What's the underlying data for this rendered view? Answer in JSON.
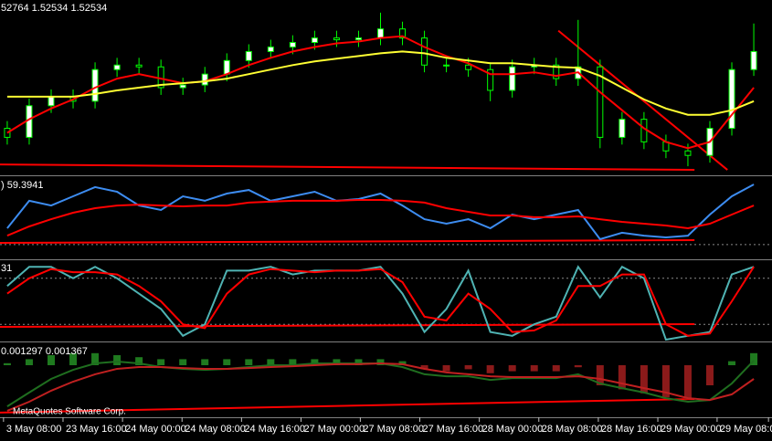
{
  "chart_data": [
    {
      "type": "candlestick",
      "title": "52764 1.52534 1.52534",
      "ylim": [
        1.52,
        1.5295
      ],
      "open": [
        1.5225,
        1.522,
        1.52375,
        1.52425,
        1.524,
        1.52575,
        1.526,
        1.5259,
        1.52475,
        1.5249,
        1.5255,
        1.52625,
        1.52675,
        1.527,
        1.52725,
        1.5275,
        1.5274,
        1.5275,
        1.528,
        1.5275,
        1.526,
        1.526,
        1.52575,
        1.5246,
        1.5259,
        1.526,
        1.52525,
        1.5259,
        1.522,
        1.523,
        1.52175,
        1.52125,
        1.521,
        1.5225,
        1.52575
      ],
      "high": [
        1.5229,
        1.52415,
        1.52465,
        1.52465,
        1.52615,
        1.5264,
        1.5264,
        1.5263,
        1.5253,
        1.5259,
        1.52665,
        1.52715,
        1.5274,
        1.52765,
        1.5279,
        1.5279,
        1.5279,
        1.5289,
        1.5284,
        1.5279,
        1.5264,
        1.5264,
        1.52615,
        1.5263,
        1.5264,
        1.5264,
        1.5285,
        1.5263,
        1.5234,
        1.5234,
        1.52215,
        1.52165,
        1.5229,
        1.52615,
        1.5283
      ],
      "low": [
        1.5216,
        1.5216,
        1.52335,
        1.5236,
        1.5236,
        1.52535,
        1.5255,
        1.52435,
        1.52435,
        1.5245,
        1.5251,
        1.52585,
        1.52635,
        1.5266,
        1.52685,
        1.527,
        1.527,
        1.5271,
        1.5271,
        1.5256,
        1.5256,
        1.52535,
        1.524,
        1.5242,
        1.5255,
        1.52485,
        1.52485,
        1.5214,
        1.5216,
        1.52135,
        1.52085,
        1.5204,
        1.5206,
        1.5221,
        1.5254
      ],
      "close": [
        1.522,
        1.52375,
        1.52425,
        1.524,
        1.52575,
        1.526,
        1.5259,
        1.52475,
        1.5249,
        1.5255,
        1.52625,
        1.52675,
        1.527,
        1.52725,
        1.5275,
        1.5274,
        1.5275,
        1.528,
        1.5275,
        1.526,
        1.526,
        1.52575,
        1.5246,
        1.5259,
        1.526,
        1.52525,
        1.5259,
        1.522,
        1.523,
        1.52175,
        1.52125,
        1.521,
        1.5225,
        1.52575,
        1.52675
      ],
      "up_color": "#ffffff",
      "down_color": "#000000",
      "wick_color": "#00ff00",
      "series": [
        {
          "color": "#ff0000",
          "values": [
            1.52225,
            1.523,
            1.5236,
            1.5241,
            1.52475,
            1.52525,
            1.5255,
            1.52525,
            1.525,
            1.5251,
            1.5255,
            1.526,
            1.5264,
            1.52675,
            1.527,
            1.5272,
            1.5273,
            1.5275,
            1.5276,
            1.527,
            1.5265,
            1.5261,
            1.5255,
            1.5255,
            1.5256,
            1.5254,
            1.5256,
            1.5245,
            1.5235,
            1.5225,
            1.52175,
            1.5214,
            1.52175,
            1.52325,
            1.52475
          ]
        },
        {
          "color": "#ffff33",
          "values": [
            1.52425,
            1.52425,
            1.52425,
            1.52425,
            1.5244,
            1.5246,
            1.52475,
            1.5249,
            1.525,
            1.5251,
            1.52525,
            1.5255,
            1.52575,
            1.526,
            1.5262,
            1.52635,
            1.5265,
            1.52665,
            1.52675,
            1.52665,
            1.5264,
            1.52625,
            1.5261,
            1.5261,
            1.526,
            1.5259,
            1.52585,
            1.5254,
            1.52475,
            1.5241,
            1.5236,
            1.52325,
            1.52325,
            1.5235,
            1.524
          ]
        }
      ],
      "trendlines": [
        {
          "color": "#ff0000",
          "x": [
            -0.33,
            31.3
          ],
          "y": [
            1.5205,
            1.5202
          ]
        },
        {
          "color": "#ff0000",
          "x": [
            25.1,
            32.8
          ],
          "y": [
            1.5279,
            1.5202
          ]
        }
      ]
    },
    {
      "type": "line",
      "title": ") 59.3941",
      "ylim": [
        20,
        80
      ],
      "levels": [
        30
      ],
      "series": [
        {
          "color": "#3d8cf0",
          "values": [
            42.6,
            63.8,
            60.2,
            67.3,
            74.4,
            70.8,
            60.2,
            56.7,
            67.3,
            63.8,
            69.4,
            72.2,
            63.8,
            67.3,
            70.8,
            63.8,
            65.2,
            69.4,
            60.2,
            49.6,
            46.1,
            49.6,
            42.6,
            53.2,
            49.6,
            53.2,
            56.7,
            34.1,
            39.1,
            36.9,
            35.5,
            36.9,
            53.2,
            67.3,
            76.5
          ]
        },
        {
          "color": "#ff0000",
          "values": [
            36.9,
            44.0,
            49.6,
            54.6,
            58.1,
            60.2,
            60.9,
            60.2,
            59.5,
            60.2,
            60.2,
            62.4,
            63.1,
            63.8,
            63.8,
            63.8,
            64.5,
            64.5,
            63.8,
            62.4,
            58.1,
            55.3,
            52.5,
            52.5,
            51.1,
            51.1,
            51.8,
            49.6,
            47.5,
            46.1,
            44.7,
            42.6,
            46.1,
            53.2,
            60.2
          ]
        }
      ],
      "trendlines": [
        {
          "color": "#ff0000",
          "x": [
            -0.33,
            31.3
          ],
          "y": [
            31.3,
            33.4
          ]
        }
      ]
    },
    {
      "type": "line",
      "title": "31",
      "ylim": [
        0,
        100
      ],
      "levels": [
        20,
        80
      ],
      "series": [
        {
          "color": "#4fb3b3",
          "values": [
            70,
            95,
            95,
            80,
            95,
            80,
            60,
            40,
            5,
            20,
            90,
            90,
            95,
            85,
            90,
            90,
            90,
            95,
            60,
            10,
            40,
            90,
            10,
            5,
            20,
            30,
            95,
            55,
            95,
            80,
            0,
            5,
            10,
            85,
            95
          ]
        },
        {
          "color": "#ff0000",
          "values": [
            60,
            80,
            92,
            88,
            88,
            85,
            70,
            50,
            20,
            15,
            60,
            85,
            92,
            90,
            88,
            90,
            90,
            92,
            75,
            30,
            25,
            60,
            40,
            10,
            12,
            25,
            70,
            70,
            85,
            85,
            20,
            5,
            8,
            50,
            95
          ]
        }
      ],
      "trendlines": [
        {
          "color": "#ff0000",
          "x": [
            -0.33,
            31.3
          ],
          "y": [
            16.7,
            20.2
          ]
        }
      ]
    },
    {
      "type": "macd",
      "title": "0.001297 0.001367",
      "ylim": [
        -0.0025,
        0.001
      ],
      "histogram": {
        "pos_color": "#1f7a1f",
        "neg_color": "#8b1a1a",
        "values": [
          0.0001,
          0.0003,
          0.0005,
          0.0006,
          0.0006,
          0.0005,
          0.0004,
          0.0003,
          0.0003,
          0.0003,
          0.0003,
          0.0003,
          0.0003,
          0.0003,
          0.0003,
          0.0003,
          0.0003,
          0.0003,
          0.0002,
          -0.0002,
          -0.0003,
          -0.0002,
          -0.0004,
          -0.0003,
          -0.0003,
          -0.0003,
          -0.0001,
          -0.001,
          -0.0012,
          -0.0014,
          -0.0016,
          -0.0017,
          -0.001,
          0.0002,
          0.0006
        ]
      },
      "series": [
        {
          "color": "#1f6e1f",
          "values": [
            -0.00205,
            -0.00136,
            -0.00068,
            -0.00023,
            9e-05,
            0.00018,
            9e-05,
            -9e-05,
            -0.00018,
            -0.00023,
            -0.00018,
            -9e-05,
            0,
            0,
            9e-05,
            9e-05,
            9e-05,
            9e-05,
            -9e-05,
            -0.00045,
            -0.00055,
            -0.00055,
            -0.00073,
            -0.00064,
            -0.00064,
            -0.00064,
            -0.00045,
            -0.00091,
            -0.00114,
            -0.00136,
            -0.00164,
            -0.00182,
            -0.00173,
            -0.00091,
            0.00023
          ]
        },
        {
          "color": "#c02020",
          "values": [
            -0.00227,
            -0.00182,
            -0.00127,
            -0.00082,
            -0.00045,
            -0.00018,
            -9e-05,
            -9e-05,
            -0.00014,
            -0.00018,
            -0.00018,
            -0.00014,
            -9e-05,
            -5e-05,
            0,
            5e-05,
            5e-05,
            9e-05,
            5e-05,
            -0.00018,
            -0.00036,
            -0.00045,
            -0.00055,
            -0.00059,
            -0.00059,
            -0.00059,
            -0.00055,
            -0.00068,
            -0.00091,
            -0.00114,
            -0.00136,
            -0.00164,
            -0.00173,
            -0.00145,
            -0.00068
          ]
        }
      ],
      "trendlines": [
        {
          "color": "#ff0000",
          "x": [
            -0.33,
            31.3
          ],
          "y": [
            -0.00236,
            -0.00168
          ]
        }
      ]
    }
  ],
  "x_axis": {
    "xlim": [
      -0.33,
      34.83
    ],
    "xticks": [
      {
        "value": -0.17,
        "label": "3 May 08:00"
      },
      {
        "value": 2.54,
        "label": "23 May 16:00"
      },
      {
        "value": 5.25,
        "label": "24 May 00:00"
      },
      {
        "value": 7.96,
        "label": "24 May 08:00"
      },
      {
        "value": 10.67,
        "label": "24 May 16:00"
      },
      {
        "value": 13.38,
        "label": "27 May 00:00"
      },
      {
        "value": 16.08,
        "label": "27 May 08:00"
      },
      {
        "value": 18.79,
        "label": "27 May 16:00"
      },
      {
        "value": 21.5,
        "label": "28 May 00:00"
      },
      {
        "value": 24.21,
        "label": "28 May 08:00"
      },
      {
        "value": 26.92,
        "label": "28 May 16:00"
      },
      {
        "value": 29.63,
        "label": "29 May 00:00"
      },
      {
        "value": 32.33,
        "label": "29 May 08:00"
      },
      {
        "value": 34.67,
        "label": "2"
      }
    ]
  },
  "copyright": "MetaQuotes Software Corp."
}
